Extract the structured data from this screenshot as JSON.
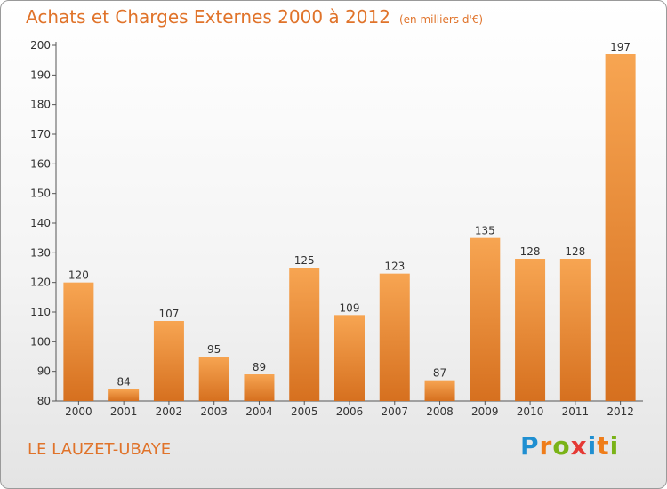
{
  "header": {
    "title": "Achats et Charges Externes 2000 à 2012",
    "subtitle": "(en milliers d'€)"
  },
  "footer": {
    "commune": "LE LAUZET-UBAYE",
    "logo_text": "Proxiti",
    "logo_letters": [
      "P",
      "r",
      "o",
      "x",
      "i",
      "t",
      "i"
    ],
    "logo_colors": [
      "#1f8fd1",
      "#ef7d1a",
      "#7ab317",
      "#e53935",
      "#1f8fd1",
      "#ef7d1a",
      "#7ab317"
    ]
  },
  "colors": {
    "accent": "#e0732a",
    "bar_top": "#f7a552",
    "bar_bottom": "#d6701f"
  },
  "chart_data": {
    "type": "bar",
    "title": "Achats et Charges Externes 2000 à 2012",
    "subtitle": "(en milliers d'€)",
    "xlabel": "",
    "ylabel": "",
    "categories": [
      "2000",
      "2001",
      "2002",
      "2003",
      "2004",
      "2005",
      "2006",
      "2007",
      "2008",
      "2009",
      "2010",
      "2011",
      "2012"
    ],
    "values": [
      120,
      84,
      107,
      95,
      89,
      125,
      109,
      123,
      87,
      135,
      128,
      128,
      197
    ],
    "ylim": [
      80,
      200
    ],
    "yticks": [
      80,
      90,
      100,
      110,
      120,
      130,
      140,
      150,
      160,
      170,
      180,
      190,
      200
    ],
    "grid": false,
    "legend": "none"
  }
}
